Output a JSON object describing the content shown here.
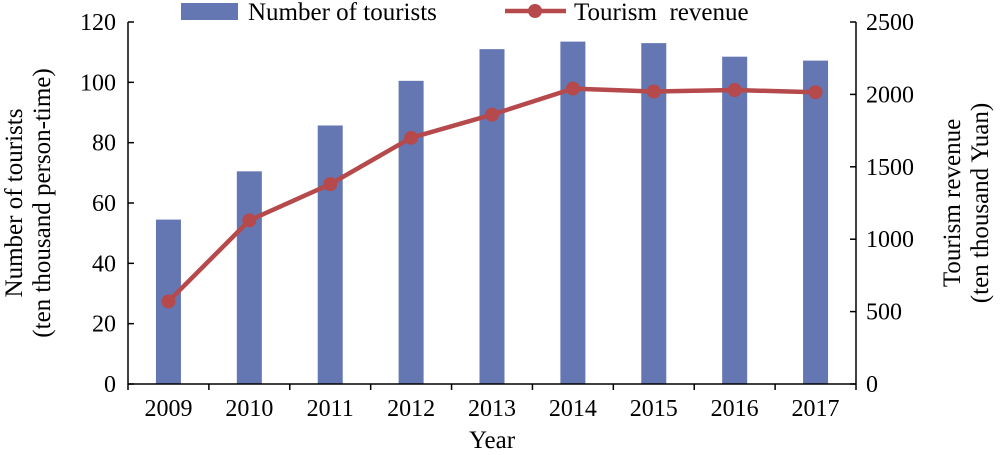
{
  "chart_data": {
    "type": "bar",
    "title": "",
    "xlabel": "Year",
    "categories": [
      "2009",
      "2010",
      "2011",
      "2012",
      "2013",
      "2014",
      "2015",
      "2016",
      "2017"
    ],
    "y_left": {
      "label_line1": "Number of tourists",
      "label_line2": "(ten thousand person-time)",
      "range": [
        0,
        120
      ],
      "ticks": [
        "0",
        "20",
        "40",
        "60",
        "80",
        "100",
        "120"
      ]
    },
    "y_right": {
      "label_line1": "Tourism revenue",
      "label_line2": "(ten thousand Yuan)",
      "range": [
        0,
        2500
      ],
      "ticks": [
        "0",
        "500",
        "1000",
        "1500",
        "2000",
        "2500"
      ]
    },
    "series": [
      {
        "name": "Number of tourists",
        "kind": "bar",
        "axis": "left",
        "color": "#6577b3",
        "values": [
          54.5,
          70.5,
          85.7,
          100.5,
          111.0,
          113.5,
          113.0,
          108.5,
          107.2
        ]
      },
      {
        "name": "Tourism  revenue",
        "kind": "line",
        "axis": "right",
        "color": "#b5494b",
        "values": [
          570,
          1130,
          1380,
          1700,
          1860,
          2040,
          2020,
          2030,
          2015
        ]
      }
    ],
    "legend_position": "top",
    "grid": false
  }
}
